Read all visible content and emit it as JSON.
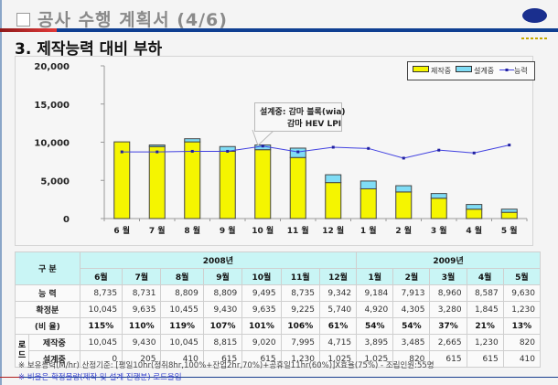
{
  "header": {
    "title": "공사 수행 계획서 (4/6)",
    "section_title": "3. 제작능력 대비 부하"
  },
  "colors": {
    "production_bar": "#f5f500",
    "design_bar": "#7fdcf5",
    "capacity_line": "#4040e0",
    "title_rule": "#0f3f92",
    "table_header": "#c9f5f5"
  },
  "annotation": {
    "line1": "설계중: 감마 블록(wia)",
    "line2": "감마 HEV LPI"
  },
  "chart_data": {
    "type": "bar",
    "stacked": true,
    "title": "",
    "xlabel": "",
    "ylabel": "",
    "ylim": [
      0,
      20000
    ],
    "yticks": [
      "0",
      "5,000",
      "10,000",
      "15,000",
      "20,000"
    ],
    "ytick_values": [
      0,
      5000,
      10000,
      15000,
      20000
    ],
    "categories": [
      "6 월",
      "7 월",
      "8 월",
      "9 월",
      "10 월",
      "11 월",
      "12 월",
      "1 월",
      "2 월",
      "3 월",
      "4 월",
      "5 월"
    ],
    "series": [
      {
        "name": "제작중",
        "type": "bar",
        "values": [
          10045,
          9430,
          10045,
          8815,
          9020,
          7995,
          4715,
          3895,
          3485,
          2665,
          1230,
          820
        ]
      },
      {
        "name": "설계중",
        "type": "bar",
        "values": [
          0,
          205,
          410,
          615,
          615,
          1230,
          1025,
          1025,
          820,
          615,
          615,
          410
        ]
      },
      {
        "name": "능력",
        "type": "line",
        "values": [
          8735,
          8731,
          8809,
          8809,
          9495,
          8735,
          9342,
          9184,
          7913,
          8960,
          8587,
          9630
        ]
      }
    ],
    "legend": [
      "제작중",
      "설계중",
      "능력"
    ],
    "legend_position": "top-right",
    "grid": false
  },
  "table": {
    "corner_label": "구 분",
    "years": [
      {
        "label": "2008년",
        "span": 7
      },
      {
        "label": "2009년",
        "span": 5
      }
    ],
    "months": [
      "6월",
      "7월",
      "8월",
      "9월",
      "10월",
      "11월",
      "12월",
      "1월",
      "2월",
      "3월",
      "4월",
      "5월"
    ],
    "rows": {
      "capacity": {
        "label": "능 력",
        "values": [
          "8,735",
          "8,731",
          "8,809",
          "8,809",
          "9,495",
          "8,735",
          "9,342",
          "9,184",
          "7,913",
          "8,960",
          "8,587",
          "9,630"
        ]
      },
      "confirmed": {
        "label": "확정분",
        "values": [
          "10,045",
          "9,635",
          "10,455",
          "9,430",
          "9,635",
          "9,225",
          "5,740",
          "4,920",
          "4,305",
          "3,280",
          "1,845",
          "1,230"
        ]
      },
      "ratio": {
        "label": "(비 율)",
        "values": [
          "115%",
          "110%",
          "119%",
          "107%",
          "101%",
          "106%",
          "61%",
          "54%",
          "54%",
          "37%",
          "21%",
          "13%"
        ]
      },
      "load_group_label": "로드",
      "production": {
        "label": "제작중",
        "values": [
          "10,045",
          "9,430",
          "10,045",
          "8,815",
          "9,020",
          "7,995",
          "4,715",
          "3,895",
          "3,485",
          "2,665",
          "1,230",
          "820"
        ]
      },
      "design": {
        "label": "설계중",
        "values": [
          "0",
          "205",
          "410",
          "615",
          "615",
          "1,230",
          "1,025",
          "1,025",
          "820",
          "615",
          "615",
          "410"
        ]
      }
    }
  },
  "notes": {
    "note1": "※ 보유능력(M/hr) 산정기준: [평일10hr(정취8hr,100%+잔업2hr,70%)+공휴일11hr(60%)]X효율(75%) - 조립인원:55명",
    "note2": "※ 비율은 확정물량(제작 및 설계 진행분) 로드율임"
  }
}
